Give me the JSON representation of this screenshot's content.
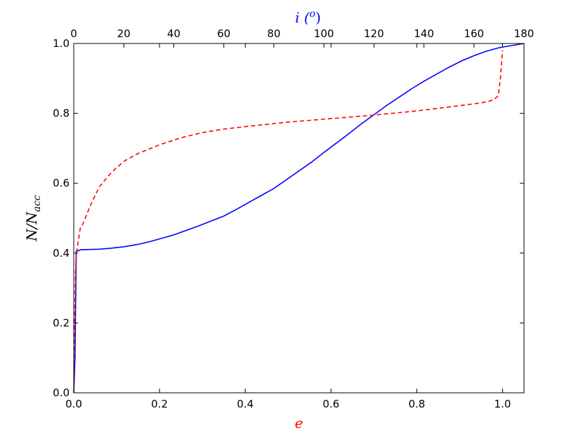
{
  "chart_data": {
    "type": "line",
    "title": "",
    "xlabel": "e",
    "ylabel": "N/N_acc",
    "ylabel_base": "N/N",
    "ylabel_sub": "acc",
    "top_xlabel": "i (°)",
    "top_xlabel_base": "i (",
    "top_xlabel_sup": "o",
    "top_xlabel_close": ")",
    "xlim": [
      0,
      1.05
    ],
    "ylim": [
      0,
      1.0
    ],
    "top_xlim": [
      0,
      180
    ],
    "xticks": [
      "0.0",
      "0.2",
      "0.4",
      "0.6",
      "0.8",
      "1.0"
    ],
    "yticks": [
      "0.0",
      "0.2",
      "0.4",
      "0.6",
      "0.8",
      "1.0"
    ],
    "top_xticks": [
      "0",
      "20",
      "40",
      "60",
      "80",
      "100",
      "120",
      "140",
      "160",
      "180"
    ],
    "grid": false,
    "colors": {
      "e_series": "#ff0000",
      "i_series": "#0000ff",
      "xlabel": "#ff0000",
      "top_xlabel": "#0000ff"
    },
    "series": [
      {
        "axis": "top",
        "style": "solid",
        "color": "#0000ff",
        "x": [
          0,
          0.5,
          1,
          3,
          5,
          10,
          15,
          20,
          25,
          30,
          35,
          40,
          45,
          50,
          55,
          60,
          65,
          70,
          75,
          80,
          85,
          90,
          95,
          100,
          105,
          110,
          115,
          120,
          125,
          130,
          135,
          140,
          145,
          150,
          155,
          160,
          165,
          170,
          175,
          180
        ],
        "y": [
          0,
          0.1,
          0.405,
          0.41,
          0.41,
          0.411,
          0.414,
          0.418,
          0.424,
          0.432,
          0.442,
          0.452,
          0.465,
          0.478,
          0.492,
          0.506,
          0.525,
          0.545,
          0.565,
          0.585,
          0.61,
          0.635,
          0.66,
          0.688,
          0.715,
          0.742,
          0.77,
          0.796,
          0.822,
          0.846,
          0.87,
          0.892,
          0.912,
          0.932,
          0.95,
          0.965,
          0.978,
          0.988,
          0.994,
          1.0
        ]
      },
      {
        "axis": "bottom",
        "style": "dashed",
        "color": "#ff0000",
        "x": [
          0,
          0.002,
          0.004,
          0.006,
          0.01,
          0.015,
          0.02,
          0.03,
          0.04,
          0.06,
          0.08,
          0.1,
          0.12,
          0.15,
          0.2,
          0.25,
          0.3,
          0.35,
          0.4,
          0.5,
          0.6,
          0.7,
          0.8,
          0.9,
          0.95,
          0.97,
          0.98,
          0.99,
          0.995,
          1.0
        ],
        "y": [
          0,
          0.2,
          0.34,
          0.4,
          0.43,
          0.47,
          0.48,
          0.51,
          0.54,
          0.59,
          0.62,
          0.645,
          0.665,
          0.685,
          0.71,
          0.73,
          0.745,
          0.755,
          0.762,
          0.775,
          0.785,
          0.795,
          0.807,
          0.822,
          0.83,
          0.835,
          0.84,
          0.85,
          0.9,
          0.98
        ]
      }
    ]
  }
}
